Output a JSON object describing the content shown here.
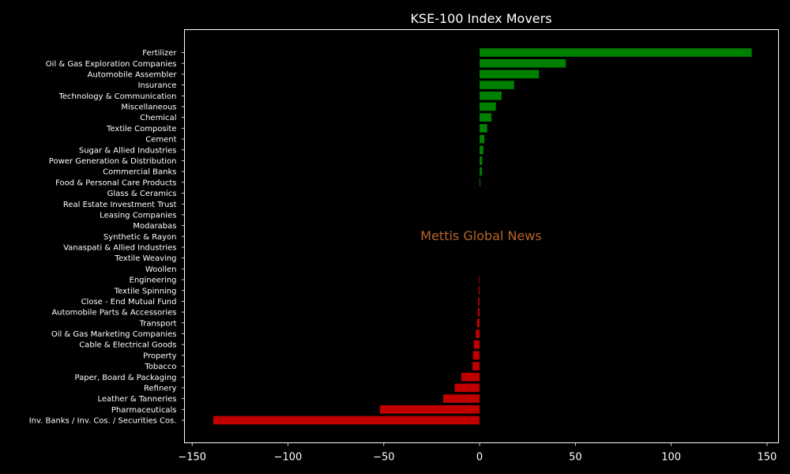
{
  "chart_data": {
    "type": "bar",
    "orientation": "horizontal",
    "title": "KSE-100 Index Movers",
    "xlabel": "",
    "ylabel": "",
    "xlim": [
      -154,
      156
    ],
    "xticks": [
      -150,
      -100,
      -50,
      0,
      50,
      100,
      150
    ],
    "xtick_labels": [
      "−150",
      "−100",
      "−50",
      "0",
      "50",
      "100",
      "150"
    ],
    "grid": false,
    "watermark": "Mettis Global News",
    "colors": {
      "background": "#000000",
      "axes": "#ffffff",
      "text": "#ffffff",
      "positive": "#008000",
      "negative": "#c00000",
      "watermark": "#b8642a"
    },
    "categories": [
      "Fertilizer",
      "Oil & Gas Exploration Companies",
      "Automobile Assembler",
      "Insurance",
      "Technology & Communication",
      "Miscellaneous",
      "Chemical",
      "Textile Composite",
      "Cement",
      "Sugar & Allied Industries",
      "Power Generation & Distribution",
      "Commercial Banks",
      "Food & Personal Care Products",
      "Glass & Ceramics",
      "Real Estate Investment Trust",
      "Leasing Companies",
      "Modarabas",
      "Synthetic & Rayon",
      "Vanaspati & Allied Industries",
      "Textile Weaving",
      "Woollen",
      "Engineering",
      "Textile Spinning",
      "Close - End Mutual Fund",
      "Automobile Parts & Accessories",
      "Transport",
      "Oil & Gas Marketing Companies",
      "Cable & Electrical Goods",
      "Property",
      "Tobacco",
      "Paper, Board & Packaging",
      "Refinery",
      "Leather & Tanneries",
      "Pharmaceuticals",
      "Inv. Banks / Inv. Cos. / Securities Cos."
    ],
    "values": [
      142,
      45,
      31,
      18,
      11.5,
      8.5,
      6.2,
      4,
      2.5,
      2,
      1.4,
      1.2,
      0.4,
      0,
      0,
      0,
      0,
      0,
      0,
      0,
      0,
      -0.3,
      -0.5,
      -0.7,
      -0.9,
      -1.3,
      -2,
      -3,
      -3.5,
      -3.7,
      -9.5,
      -13,
      -19,
      -52,
      -139
    ]
  }
}
